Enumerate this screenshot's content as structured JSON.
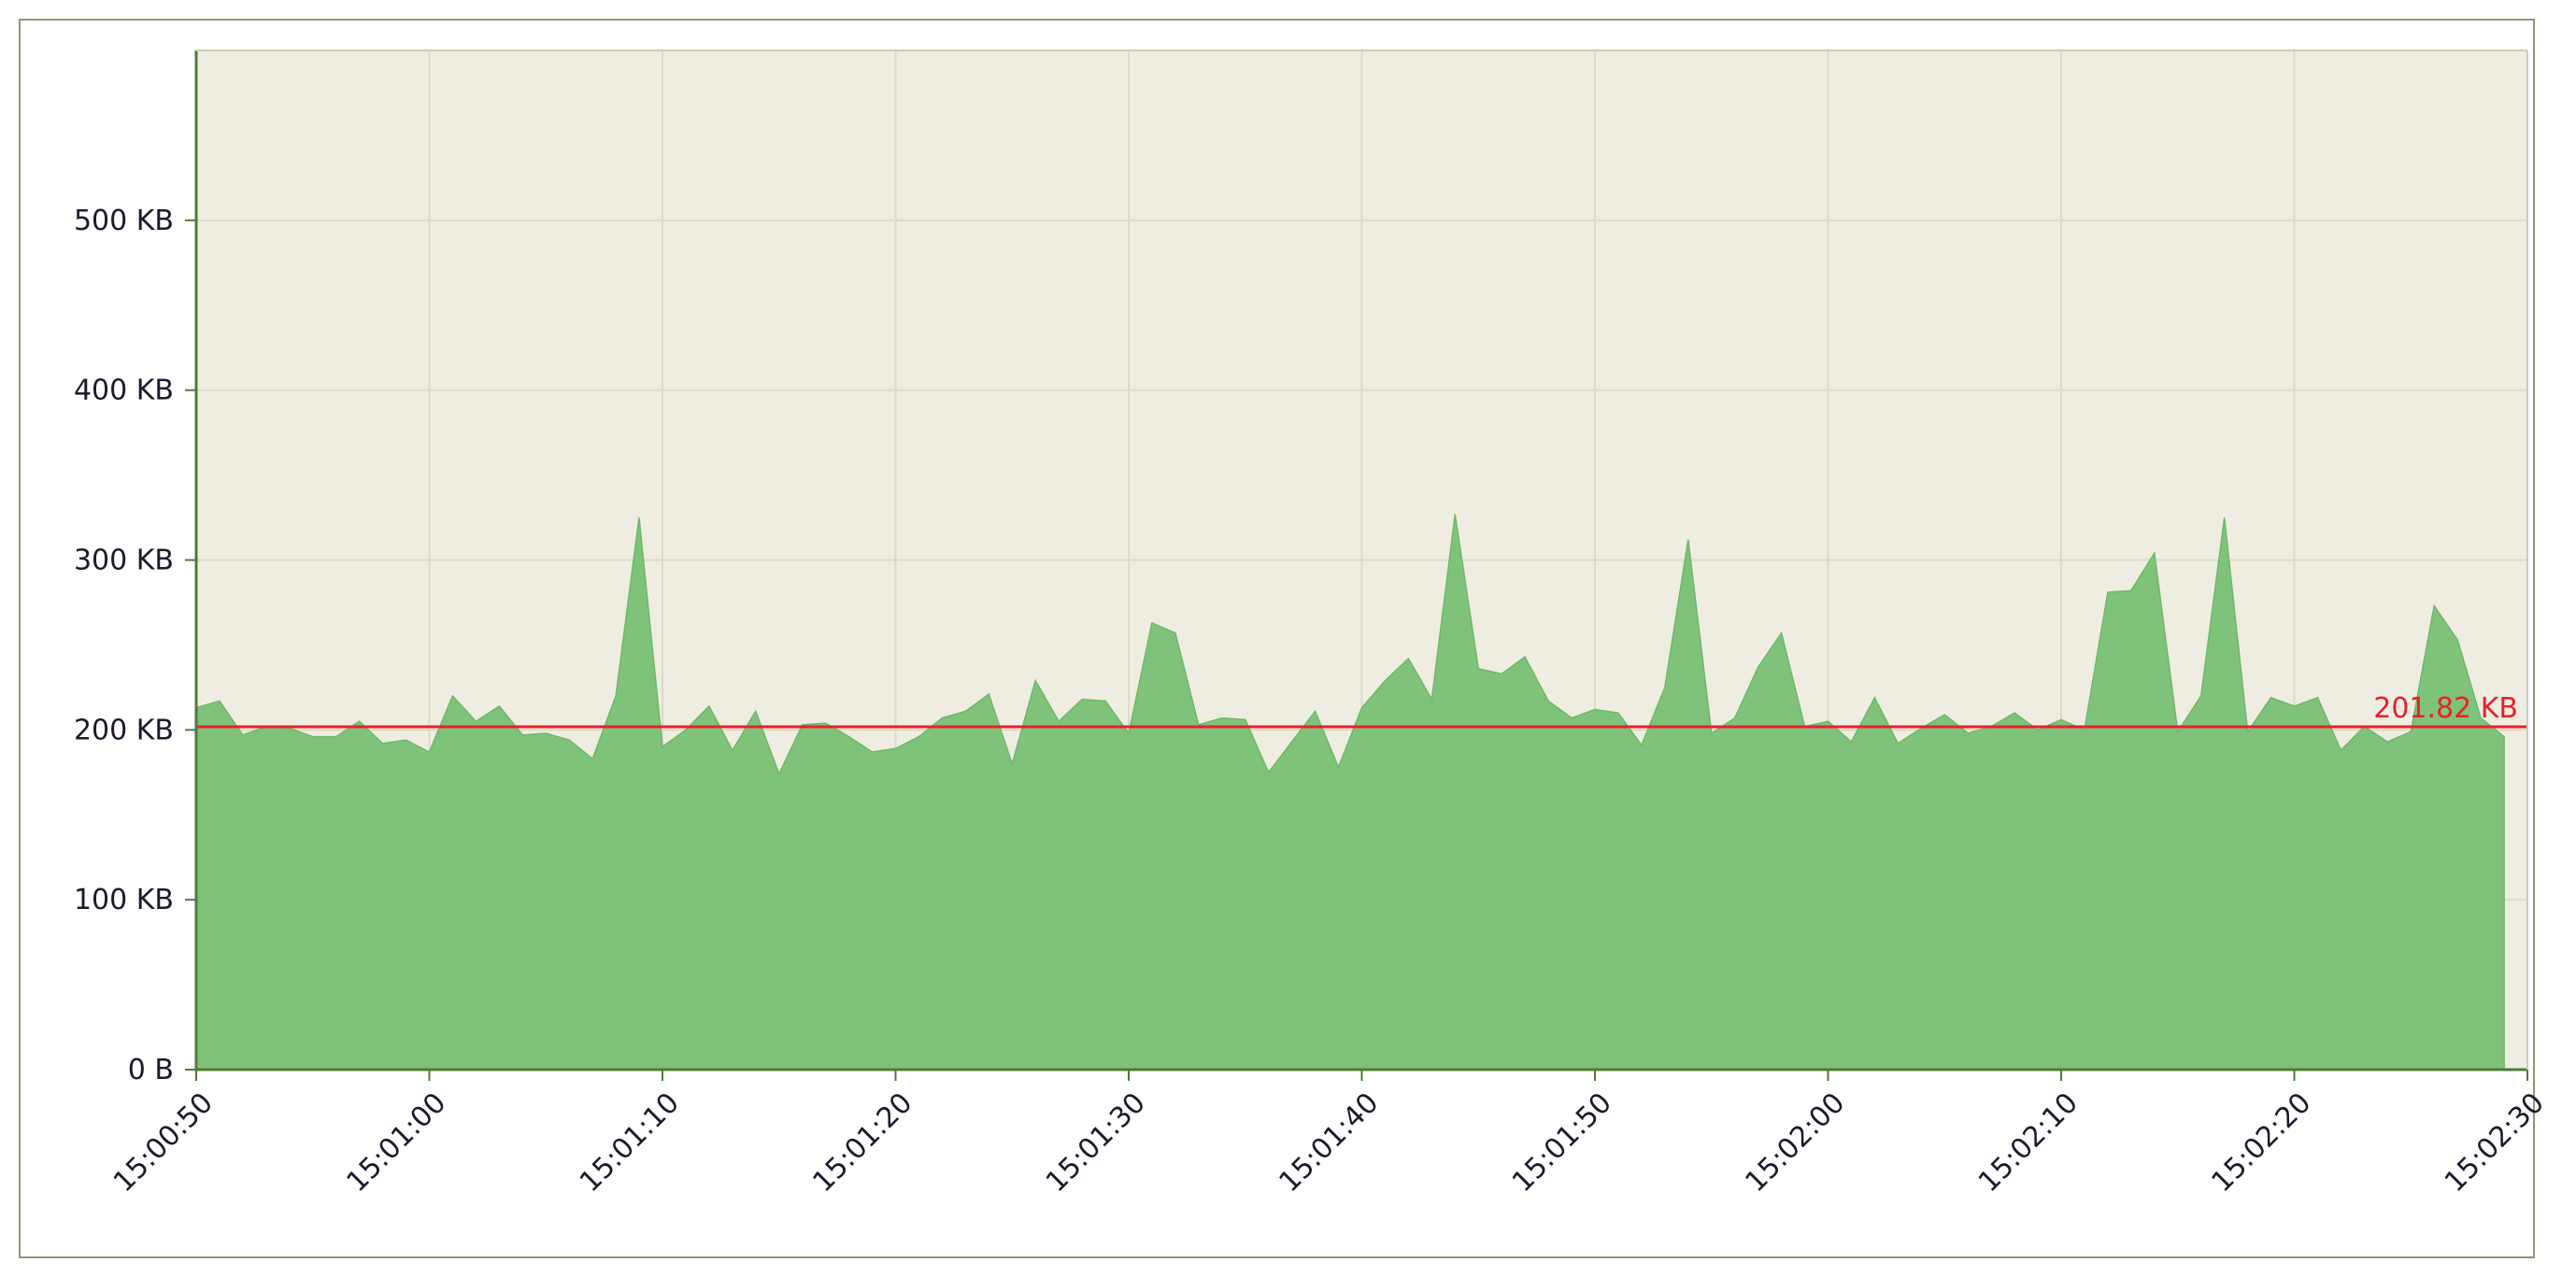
{
  "chart_data": {
    "type": "area",
    "title": "",
    "xlabel": "",
    "ylabel": "",
    "x_ticks": [
      "15:00:50",
      "15:01:00",
      "15:01:10",
      "15:01:20",
      "15:01:30",
      "15:01:40",
      "15:01:50",
      "15:02:00",
      "15:02:10",
      "15:02:20",
      "15:02:30"
    ],
    "x_range": [
      "15:00:50",
      "15:02:30"
    ],
    "y_ticks": [
      "0 B",
      "100 KB",
      "200 KB",
      "300 KB",
      "400 KB",
      "500 KB"
    ],
    "ylim": [
      0,
      600
    ],
    "y_unit": "KB",
    "grid": true,
    "series": [
      {
        "sample_interval_seconds": 1,
        "start_time": "15:00:50",
        "values": [
          213,
          217,
          197,
          202,
          201,
          196,
          196,
          205,
          192,
          194,
          187,
          220,
          205,
          214,
          197,
          198,
          194,
          183,
          220,
          325,
          190,
          200,
          214,
          188,
          211,
          174,
          203,
          204,
          196,
          187,
          189,
          196,
          207,
          211,
          221,
          180,
          229,
          205,
          218,
          217,
          198,
          263,
          257,
          203,
          207,
          206,
          175,
          193,
          211,
          178,
          213,
          229,
          242,
          218,
          327,
          236,
          233,
          243,
          217,
          207,
          212,
          210,
          191,
          225,
          312,
          198,
          207,
          237,
          257,
          202,
          205,
          193,
          219,
          192,
          201,
          209,
          198,
          202,
          210,
          200,
          206,
          200,
          281,
          282,
          304,
          199,
          220,
          325,
          199,
          219,
          214,
          219,
          188,
          202,
          193,
          199,
          273,
          253,
          207,
          196
        ]
      }
    ],
    "reference_line": {
      "value": 201.82,
      "label": "201.82 KB"
    },
    "colors": {
      "area_fill": "#7fc37a",
      "area_edge": "#6fb86a",
      "plot_background": "#efede2",
      "grid": "#d9dcc8",
      "axis": "#4f7a3a",
      "reference_line": "#e8202a",
      "tick_text": "#1a1a2e"
    }
  }
}
